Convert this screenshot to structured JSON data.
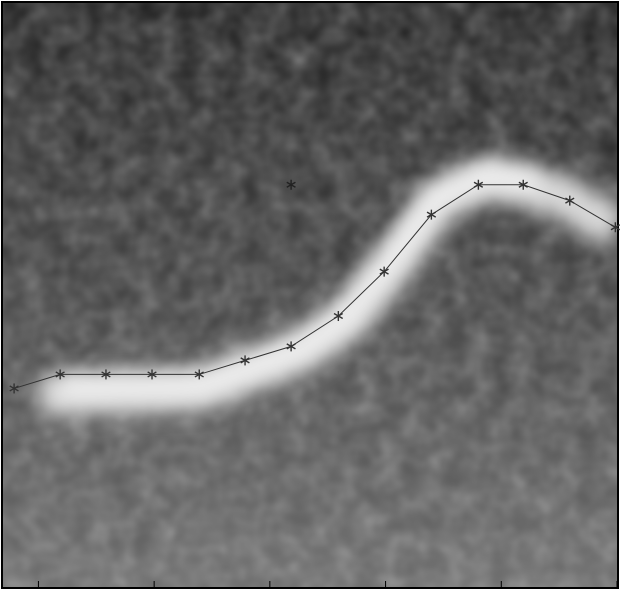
{
  "chart_data": {
    "type": "line",
    "x": [
      0.47,
      2.42,
      4.36,
      6.31,
      8.31,
      10.25,
      12.2,
      14.2,
      16.14,
      18.14,
      20.13,
      22.03,
      24.0,
      25.93
    ],
    "series": [
      {
        "color": "#333333",
        "linestyle": "solid",
        "values": [
          16.5,
          15.9,
          15.9,
          15.9,
          15.9,
          15.3,
          14.7,
          13.4,
          11.5,
          9.06,
          7.78,
          7.78,
          8.46,
          9.6
        ]
      },
      {
        "color": "#222222",
        "linestyle": "none",
        "values": [
          null,
          null,
          null,
          null,
          null,
          null,
          7.78,
          null,
          null,
          null,
          null,
          null,
          null,
          null
        ]
      }
    ],
    "xlim": [
      0,
      26
    ],
    "ylim": [
      25,
      0
    ],
    "xticks": [
      1.5,
      6.4,
      11.3,
      16.2,
      21.1,
      26
    ]
  }
}
